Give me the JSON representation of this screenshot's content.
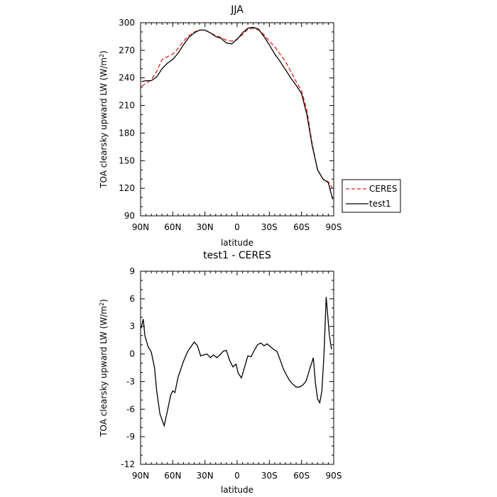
{
  "chart_data": [
    {
      "type": "line",
      "title": "JJA",
      "xlabel": "latitude",
      "ylabel": "TOA clearsky upward LW (W/m",
      "ylabel_sup": "2",
      "ylabel_end": ")",
      "xlim": [
        90,
        -90
      ],
      "ylim": [
        90,
        300
      ],
      "xticks": [
        90,
        60,
        30,
        0,
        -30,
        -60,
        -90
      ],
      "xtick_labels": [
        "90N",
        "60N",
        "30N",
        "0",
        "30S",
        "60S",
        "90S"
      ],
      "yticks": [
        90,
        120,
        150,
        180,
        210,
        240,
        270,
        300
      ],
      "ytick_labels": [
        "90",
        "120",
        "150",
        "180",
        "210",
        "240",
        "270",
        "300"
      ],
      "legend_placement": "outside-right-bottom",
      "series": [
        {
          "name": "CERES",
          "color": "#e8221b",
          "dash": "dashed",
          "x": [
            89,
            85,
            80,
            75,
            70,
            65,
            60,
            55,
            50,
            45,
            40,
            35,
            30,
            25,
            20,
            15,
            10,
            5,
            0,
            -5,
            -10,
            -15,
            -20,
            -25,
            -30,
            -35,
            -40,
            -45,
            -50,
            -55,
            -60,
            -65,
            -70,
            -75,
            -80,
            -85,
            -89
          ],
          "y": [
            231,
            234,
            238,
            247,
            260,
            263,
            266,
            272,
            280,
            286,
            290,
            292,
            292,
            289,
            286,
            284,
            281,
            280,
            282,
            287,
            293,
            294,
            292,
            287,
            280,
            274,
            266,
            258,
            247,
            236,
            226,
            205,
            168,
            140,
            130,
            127,
            120
          ]
        },
        {
          "name": "test1",
          "color": "#000000",
          "dash": "solid",
          "x": [
            89,
            85,
            80,
            75,
            70,
            65,
            60,
            55,
            50,
            45,
            40,
            35,
            30,
            25,
            20,
            15,
            10,
            5,
            0,
            -5,
            -10,
            -15,
            -20,
            -25,
            -30,
            -35,
            -40,
            -45,
            -50,
            -55,
            -60,
            -65,
            -70,
            -75,
            -80,
            -85,
            -89
          ],
          "y": [
            236,
            237,
            237,
            241,
            250,
            256,
            260,
            267,
            276,
            284,
            289,
            292,
            292,
            289,
            285,
            283,
            278,
            277,
            282,
            289,
            294,
            295,
            293,
            285,
            276,
            266,
            258,
            249,
            240,
            232,
            223,
            200,
            166,
            140,
            130,
            126,
            108
          ]
        }
      ]
    },
    {
      "type": "line",
      "title": "test1 - CERES",
      "xlabel": "latitude",
      "ylabel": "TOA clearsky upward LW (W/m",
      "ylabel_sup": "2",
      "ylabel_end": ")",
      "xlim": [
        90,
        -90
      ],
      "ylim": [
        -12,
        9
      ],
      "xticks": [
        90,
        60,
        30,
        0,
        -30,
        -60,
        -90
      ],
      "xtick_labels": [
        "90N",
        "60N",
        "30N",
        "0",
        "30S",
        "60S",
        "90S"
      ],
      "yticks": [
        -12,
        -9,
        -6,
        -3,
        0,
        3,
        6,
        9
      ],
      "ytick_labels": [
        "-12",
        "-9",
        "-6",
        "-3",
        "0",
        "3",
        "6",
        "9"
      ],
      "series": [
        {
          "color": "#000000",
          "dash": "solid",
          "x": [
            89.5,
            87.5,
            86,
            83,
            80,
            77,
            75,
            72,
            68,
            65,
            62,
            60,
            58,
            55,
            50,
            46,
            43,
            40,
            37,
            34,
            31,
            28,
            25,
            22,
            19,
            16,
            13,
            10,
            7,
            4,
            1,
            -1,
            -4,
            -7,
            -10,
            -13,
            -16,
            -19,
            -22,
            -25,
            -28,
            -31,
            -34,
            -37,
            -40,
            -43,
            -46,
            -49,
            -52,
            -55,
            -58,
            -61,
            -64,
            -66,
            -68,
            -70,
            -71,
            -73,
            -75,
            -77,
            -79,
            -81,
            -83,
            -86,
            -88
          ],
          "y": [
            2.8,
            3.8,
            2.0,
            0.8,
            0.2,
            -1.5,
            -4.0,
            -6.5,
            -7.8,
            -6.2,
            -4.5,
            -4.0,
            -4.2,
            -2.5,
            -0.8,
            0.3,
            0.8,
            1.3,
            0.9,
            -0.2,
            -0.1,
            0.0,
            -0.4,
            -0.1,
            -0.4,
            -0.1,
            0.3,
            0.4,
            -0.7,
            -1.4,
            -1.1,
            -2.1,
            -2.6,
            -1.4,
            -0.2,
            -0.3,
            0.4,
            1.0,
            1.2,
            0.9,
            1.1,
            0.8,
            0.5,
            0.3,
            -0.6,
            -1.6,
            -2.3,
            -2.9,
            -3.3,
            -3.6,
            -3.6,
            -3.4,
            -3.0,
            -2.3,
            -1.5,
            -0.8,
            -0.4,
            -3.2,
            -4.9,
            -5.3,
            -4.0,
            0.1,
            6.2,
            2.0,
            0.5
          ]
        }
      ]
    }
  ]
}
